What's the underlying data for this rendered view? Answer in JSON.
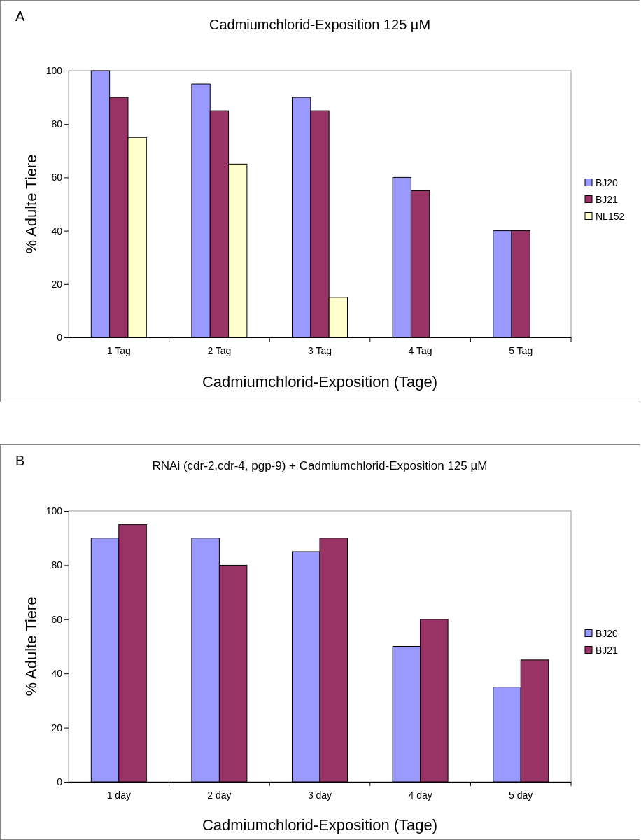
{
  "chart_data": [
    {
      "type": "bar",
      "title": "Cadmiumchlorid-Exposition 125 µM",
      "xlabel": "Cadmiumchlorid-Exposition (Tage)",
      "ylabel": "% Adulte Tiere",
      "annotations": [
        "A"
      ],
      "categories": [
        "1 Tag",
        "2 Tag",
        "3 Tag",
        "4 Tag",
        "5 Tag"
      ],
      "series": [
        {
          "name": "BJ20",
          "color": "#9999ff",
          "values": [
            100,
            95,
            90,
            60,
            40
          ]
        },
        {
          "name": "BJ21",
          "color": "#993366",
          "values": [
            90,
            85,
            85,
            55,
            40
          ]
        },
        {
          "name": "NL152",
          "color": "#ffffcc",
          "values": [
            75,
            65,
            15,
            null,
            null
          ]
        }
      ],
      "ylim": [
        0,
        100
      ],
      "yticks": [
        0,
        20,
        40,
        60,
        80,
        100
      ],
      "grid": false,
      "legend": "right"
    },
    {
      "type": "bar",
      "title": "RNAi (cdr-2,cdr-4, pgp-9) + Cadmiumchlorid-Exposition 125 µM",
      "xlabel": "Cadmiumchlorid-Exposition (Tage)",
      "ylabel": "% Adulte Tiere",
      "annotations": [
        "B"
      ],
      "categories": [
        "1 day",
        "2 day",
        "3 day",
        "4 day",
        "5 day"
      ],
      "series": [
        {
          "name": "BJ20",
          "color": "#9999ff",
          "values": [
            90,
            90,
            85,
            50,
            35
          ]
        },
        {
          "name": "BJ21",
          "color": "#993366",
          "values": [
            95,
            80,
            90,
            60,
            45
          ]
        }
      ],
      "ylim": [
        0,
        100
      ],
      "yticks": [
        0,
        20,
        40,
        60,
        80,
        100
      ],
      "grid": false,
      "legend": "right"
    }
  ]
}
